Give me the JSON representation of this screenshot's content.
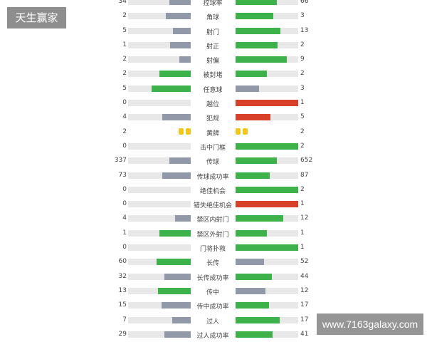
{
  "colors": {
    "green": "#3db14a",
    "gray": "#9199a8",
    "red": "#d9402a",
    "track": "#e8e8e8",
    "yellow_card": "#f4c61c"
  },
  "watermarks": {
    "top_left": "天生赢家",
    "bottom_right": "www.7163galaxy.com"
  },
  "stats": [
    {
      "label": "控球率",
      "home": "34",
      "away": "66",
      "home_fill": 0.34,
      "away_fill": 0.66,
      "home_color": "gray",
      "away_color": "green"
    },
    {
      "label": "角球",
      "home": "2",
      "away": "3",
      "home_fill": 0.4,
      "away_fill": 0.6,
      "home_color": "gray",
      "away_color": "green"
    },
    {
      "label": "射门",
      "home": "5",
      "away": "13",
      "home_fill": 0.28,
      "away_fill": 0.72,
      "home_color": "gray",
      "away_color": "green"
    },
    {
      "label": "射正",
      "home": "1",
      "away": "2",
      "home_fill": 0.33,
      "away_fill": 0.67,
      "home_color": "gray",
      "away_color": "green"
    },
    {
      "label": "射偏",
      "home": "2",
      "away": "9",
      "home_fill": 0.18,
      "away_fill": 0.82,
      "home_color": "gray",
      "away_color": "green"
    },
    {
      "label": "被封堵",
      "home": "2",
      "away": "2",
      "home_fill": 0.5,
      "away_fill": 0.5,
      "home_color": "green",
      "away_color": "green"
    },
    {
      "label": "任意球",
      "home": "5",
      "away": "3",
      "home_fill": 0.63,
      "away_fill": 0.38,
      "home_color": "green",
      "away_color": "gray"
    },
    {
      "label": "越位",
      "home": "0",
      "away": "1",
      "home_fill": 0,
      "away_fill": 1.0,
      "home_color": "gray",
      "away_color": "red"
    },
    {
      "label": "犯规",
      "home": "4",
      "away": "5",
      "home_fill": 0.45,
      "away_fill": 0.56,
      "home_color": "gray",
      "away_color": "red"
    },
    {
      "label": "黄牌",
      "home": "2",
      "away": "2",
      "cards": true
    },
    {
      "label": "击中门框",
      "home": "0",
      "away": "2",
      "home_fill": 0,
      "away_fill": 1.0,
      "home_color": "gray",
      "away_color": "green"
    },
    {
      "label": "传球",
      "home": "337",
      "away": "652",
      "home_fill": 0.34,
      "away_fill": 0.66,
      "home_color": "gray",
      "away_color": "green"
    },
    {
      "label": "传球成功率",
      "home": "73",
      "away": "87",
      "home_fill": 0.46,
      "away_fill": 0.54,
      "home_color": "gray",
      "away_color": "green"
    },
    {
      "label": "绝佳机会",
      "home": "0",
      "away": "2",
      "home_fill": 0,
      "away_fill": 1.0,
      "home_color": "gray",
      "away_color": "green"
    },
    {
      "label": "错失绝佳机会",
      "home": "0",
      "away": "1",
      "home_fill": 0,
      "away_fill": 1.0,
      "home_color": "gray",
      "away_color": "red"
    },
    {
      "label": "禁区内射门",
      "home": "4",
      "away": "12",
      "home_fill": 0.25,
      "away_fill": 0.76,
      "home_color": "gray",
      "away_color": "green"
    },
    {
      "label": "禁区外射门",
      "home": "1",
      "away": "1",
      "home_fill": 0.5,
      "away_fill": 0.5,
      "home_color": "green",
      "away_color": "green"
    },
    {
      "label": "门将扑救",
      "home": "0",
      "away": "1",
      "home_fill": 0,
      "away_fill": 1.0,
      "home_color": "gray",
      "away_color": "green"
    },
    {
      "label": "长传",
      "home": "60",
      "away": "52",
      "home_fill": 0.54,
      "away_fill": 0.46,
      "home_color": "green",
      "away_color": "gray"
    },
    {
      "label": "长传成功率",
      "home": "32",
      "away": "44",
      "home_fill": 0.42,
      "away_fill": 0.58,
      "home_color": "gray",
      "away_color": "green"
    },
    {
      "label": "传中",
      "home": "13",
      "away": "12",
      "home_fill": 0.52,
      "away_fill": 0.48,
      "home_color": "green",
      "away_color": "gray"
    },
    {
      "label": "传中成功率",
      "home": "15",
      "away": "17",
      "home_fill": 0.47,
      "away_fill": 0.53,
      "home_color": "gray",
      "away_color": "green"
    },
    {
      "label": "过人",
      "home": "7",
      "away": "17",
      "home_fill": 0.29,
      "away_fill": 0.71,
      "home_color": "gray",
      "away_color": "green"
    },
    {
      "label": "过人成功率",
      "home": "29",
      "away": "41",
      "home_fill": 0.42,
      "away_fill": 0.59,
      "home_color": "gray",
      "away_color": "green"
    }
  ]
}
